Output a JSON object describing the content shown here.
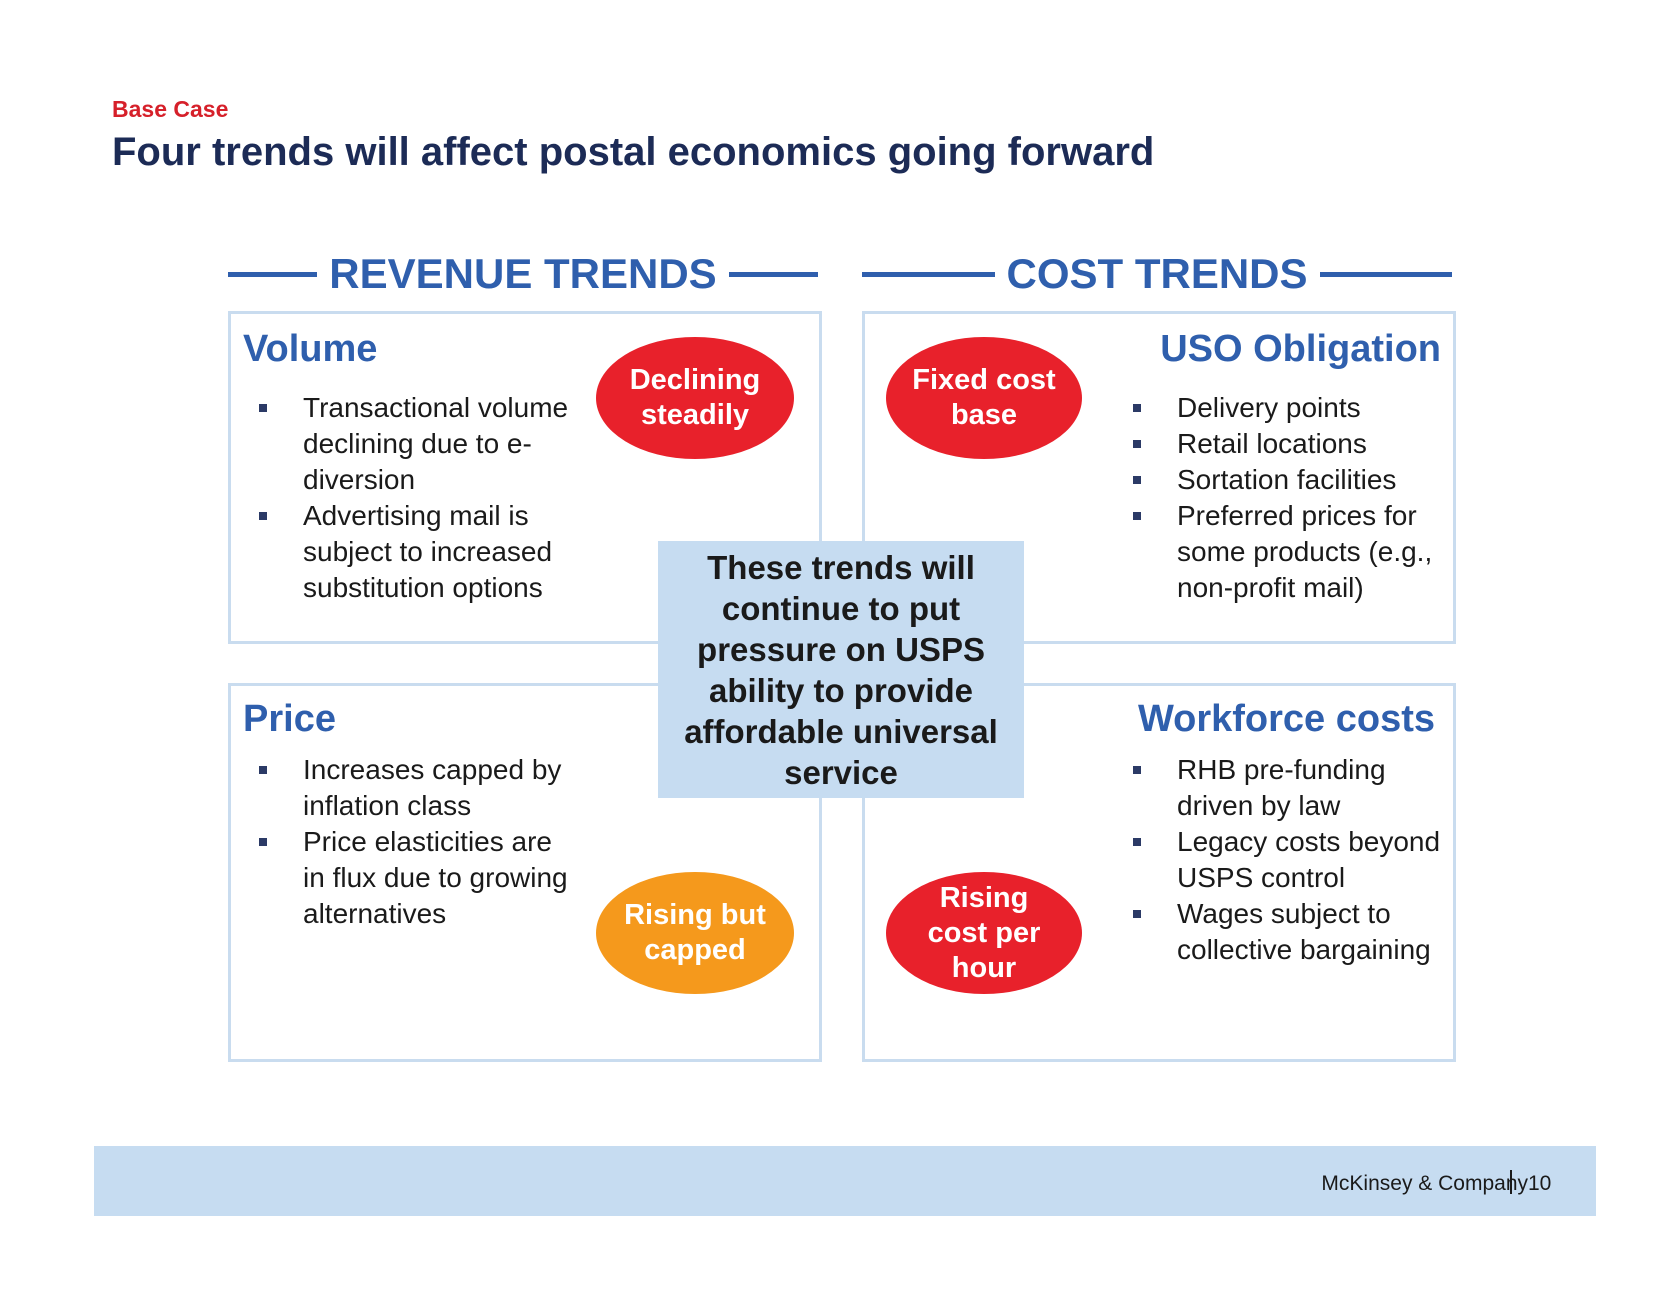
{
  "header": {
    "kicker": "Base Case",
    "title": "Four trends will affect postal economics going forward"
  },
  "sections": {
    "revenue_label": "REVENUE TRENDS",
    "cost_label": "COST TRENDS"
  },
  "panels": {
    "volume": {
      "title": "Volume",
      "bullets": [
        "Transactional volume declining due to e-diversion",
        "Advertising mail is subject to increased substitution options"
      ],
      "badge": "Declining steadily"
    },
    "uso": {
      "title": "USO Obligation",
      "bullets": [
        "Delivery points",
        "Retail locations",
        "Sortation facilities",
        "Preferred prices for some products (e.g., non-profit mail)"
      ],
      "badge": "Fixed cost base"
    },
    "price": {
      "title": "Price",
      "bullets": [
        "Increases capped by inflation class",
        "Price elasticities are in flux due to growing alternatives"
      ],
      "badge": "Rising but capped"
    },
    "workforce": {
      "title": "Workforce costs",
      "bullets": [
        "RHB pre-funding driven by law",
        "Legacy costs beyond USPS control",
        "Wages subject to collective bargaining"
      ],
      "badge": "Rising cost per hour"
    }
  },
  "center_message": "These trends will continue to put pressure on USPS ability to provide affordable universal service",
  "footer": {
    "company": "McKinsey & Company",
    "page_number": "10"
  },
  "colors": {
    "accent_blue": "#2f5fad",
    "title_navy": "#1c2b56",
    "kicker_red": "#d6202a",
    "badge_red": "#e8212b",
    "badge_orange": "#f5991c",
    "light_blue": "#c6dcf1"
  }
}
